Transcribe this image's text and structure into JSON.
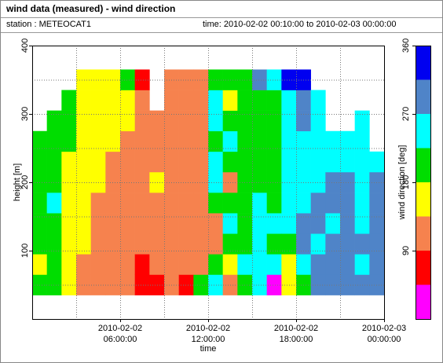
{
  "header": {
    "title": "wind data (measured) - wind direction",
    "station": "station : METEOCAT1",
    "time_range": "time: 2010-02-02 00:10:00 to 2010-02-03 00:00:00"
  },
  "chart_data": {
    "type": "heatmap",
    "xlabel": "time",
    "ylabel": "height [m]",
    "xlim": [
      "2010-02-02 00:00:00",
      "2010-02-03 00:00:00"
    ],
    "xticks": [
      {
        "value": "2010-02-02 06:00:00",
        "label": "2010-02-02 06:00:00"
      },
      {
        "value": "2010-02-02 12:00:00",
        "label": "2010-02-02 12:00:00"
      },
      {
        "value": "2010-02-02 18:00:00",
        "label": "2010-02-02 18:00:00"
      },
      {
        "value": "2010-02-03 00:00:00",
        "label": "2010-02-03 00:00:00"
      }
    ],
    "xgrid": [
      "2010-02-02 03:00:00",
      "2010-02-02 06:00:00",
      "2010-02-02 09:00:00",
      "2010-02-02 12:00:00",
      "2010-02-02 15:00:00",
      "2010-02-02 18:00:00",
      "2010-02-02 21:00:00"
    ],
    "ylim": [
      0,
      400
    ],
    "yticks": [
      100,
      200,
      300,
      400
    ],
    "ygrid": [
      50,
      100,
      150,
      200,
      250,
      300,
      350
    ],
    "x": [
      "2010-02-02 00:00:00",
      "2010-02-02 01:00:00",
      "2010-02-02 02:00:00",
      "2010-02-02 03:00:00",
      "2010-02-02 04:00:00",
      "2010-02-02 05:00:00",
      "2010-02-02 06:00:00",
      "2010-02-02 07:00:00",
      "2010-02-02 08:00:00",
      "2010-02-02 09:00:00",
      "2010-02-02 10:00:00",
      "2010-02-02 11:00:00",
      "2010-02-02 12:00:00",
      "2010-02-02 13:00:00",
      "2010-02-02 14:00:00",
      "2010-02-02 15:00:00",
      "2010-02-02 16:00:00",
      "2010-02-02 17:00:00",
      "2010-02-02 18:00:00",
      "2010-02-02 19:00:00",
      "2010-02-02 20:00:00",
      "2010-02-02 21:00:00",
      "2010-02-02 22:00:00",
      "2010-02-02 23:00:00"
    ],
    "y_bins": [
      35,
      65,
      95,
      125,
      155,
      185,
      215,
      245,
      275,
      305,
      335,
      365
    ],
    "values": [
      [
        200,
        170,
        200,
        200,
        210,
        190,
        200,
        210,
        null,
        null,
        null
      ],
      [
        200,
        210,
        190,
        200,
        230,
        200,
        200,
        210,
        200,
        null,
        null
      ],
      [
        160,
        160,
        160,
        160,
        160,
        160,
        160,
        200,
        200,
        200,
        null
      ],
      [
        120,
        120,
        160,
        160,
        160,
        160,
        160,
        160,
        160,
        160,
        160
      ],
      [
        120,
        120,
        120,
        120,
        120,
        160,
        160,
        160,
        160,
        160,
        160
      ],
      [
        120,
        120,
        120,
        120,
        120,
        120,
        120,
        160,
        160,
        160,
        160
      ],
      [
        120,
        120,
        120,
        120,
        120,
        120,
        120,
        120,
        160,
        170,
        200
      ],
      [
        75,
        75,
        120,
        120,
        120,
        120,
        120,
        120,
        120,
        110,
        80
      ],
      [
        70,
        110,
        120,
        120,
        120,
        150,
        125,
        120,
        120,
        null,
        null
      ],
      [
        110,
        120,
        120,
        120,
        120,
        120,
        120,
        120,
        120,
        120,
        120
      ],
      [
        80,
        120,
        120,
        120,
        120,
        120,
        120,
        120,
        120,
        120,
        120
      ],
      [
        200,
        120,
        120,
        120,
        120,
        120,
        120,
        120,
        120,
        120,
        120
      ],
      [
        250,
        200,
        120,
        130,
        200,
        240,
        250,
        200,
        240,
        260,
        210
      ],
      [
        120,
        160,
        200,
        240,
        200,
        120,
        200,
        250,
        200,
        160,
        200
      ],
      [
        200,
        240,
        220,
        200,
        210,
        190,
        200,
        210,
        200,
        190,
        200
      ],
      [
        240,
        250,
        240,
        230,
        240,
        220,
        210,
        200,
        200,
        210,
        280
      ],
      [
        20,
        250,
        200,
        240,
        190,
        200,
        200,
        190,
        210,
        200,
        250
      ],
      [
        160,
        170,
        180,
        250,
        250,
        240,
        250,
        240,
        250,
        260,
        330
      ],
      [
        200,
        260,
        280,
        290,
        260,
        250,
        240,
        250,
        270,
        300,
        320
      ],
      [
        280,
        290,
        260,
        290,
        280,
        250,
        250,
        250,
        240,
        260,
        null
      ],
      [
        280,
        290,
        280,
        260,
        290,
        290,
        250,
        240,
        null,
        null,
        null
      ],
      [
        300,
        290,
        290,
        280,
        280,
        270,
        240,
        260,
        null,
        null,
        null
      ],
      [
        290,
        250,
        280,
        250,
        250,
        240,
        250,
        260,
        250,
        null,
        null
      ],
      [
        290,
        280,
        290,
        290,
        280,
        280,
        260,
        null,
        null,
        null,
        null
      ]
    ],
    "colorbar": {
      "label": "wind direction [deg]",
      "lim": [
        0,
        360
      ],
      "ticks": [
        90,
        180,
        270,
        360
      ],
      "bins": [
        0,
        45,
        90,
        135,
        180,
        225,
        270,
        315,
        360
      ],
      "colors": [
        "#ff00ff",
        "#ff0000",
        "#f6824e",
        "#ffff00",
        "#00dd00",
        "#00ffff",
        "#4f84c8",
        "#0000f0"
      ]
    }
  }
}
